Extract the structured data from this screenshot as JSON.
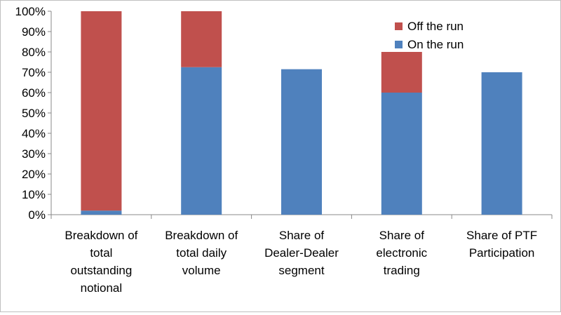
{
  "chart_data": {
    "type": "bar",
    "stacked": true,
    "title": "",
    "xlabel": "",
    "ylabel": "",
    "ylim": [
      0,
      100
    ],
    "yticks": [
      "0%",
      "10%",
      "20%",
      "30%",
      "40%",
      "50%",
      "60%",
      "70%",
      "80%",
      "90%",
      "100%"
    ],
    "categories": [
      [
        "Breakdown of",
        "total",
        "outstanding",
        "notional"
      ],
      [
        "Breakdown of",
        "total daily",
        "volume"
      ],
      [
        "Share of",
        "Dealer-Dealer",
        "segment"
      ],
      [
        "Share of",
        "electronic",
        "trading"
      ],
      [
        "Share of PTF",
        "Participation"
      ]
    ],
    "series": [
      {
        "name": "On the run",
        "color": "#4f81bd",
        "values": [
          2,
          72.5,
          71.5,
          60,
          70
        ]
      },
      {
        "name": "Off the run",
        "color": "#c0504d",
        "values": [
          98,
          27.5,
          0,
          20,
          0
        ]
      }
    ],
    "legend": {
      "position": "top-right",
      "items": [
        "Off the run",
        "On the run"
      ]
    },
    "axis_color": "#888888",
    "gridlines": false
  }
}
